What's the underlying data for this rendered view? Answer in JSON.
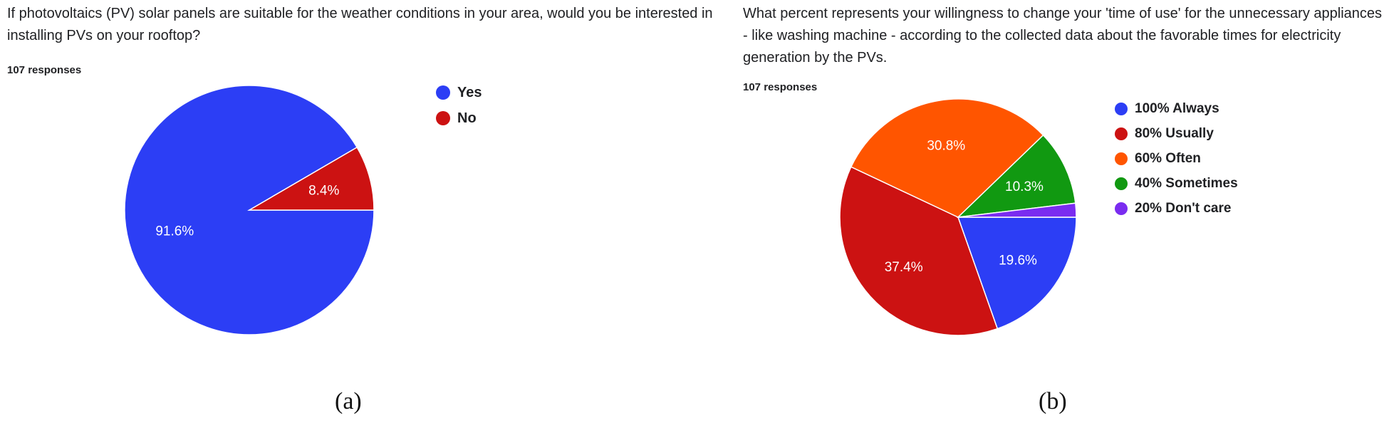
{
  "panels": [
    {
      "question": "If photovoltaics (PV) solar panels are suitable for the weather conditions in your area, would you be interested in installing PVs on your rooftop?",
      "responses": "107 responses",
      "caption": "(a)"
    },
    {
      "question": "What percent represents your willingness to change your 'time of use' for the unnecessary appliances - like washing machine - according to the collected data about the favorable times for electricity generation by the PVs.",
      "responses": "107 responses",
      "caption": "(b)"
    }
  ],
  "chart_data": [
    {
      "type": "pie",
      "title": "If photovoltaics (PV) solar panels are suitable for the weather conditions in your area, would you be interested in installing PVs on your rooftop?",
      "categories": [
        "Yes",
        "No"
      ],
      "values": [
        91.6,
        8.4
      ],
      "data_labels": [
        "91.6%",
        "8.4%"
      ],
      "colors": [
        "#2c3ef5",
        "#cc1212"
      ],
      "start_angle": "3 o'clock, clockwise",
      "legend_position": "right"
    },
    {
      "type": "pie",
      "title": "What percent represents your willingness to change your 'time of use' for the unnecessary appliances - like washing machine - according to the collected data about the favorable times for electricity generation by the PVs.",
      "categories": [
        "100% Always",
        "80% Usually",
        "60% Often",
        "40% Sometimes",
        "20% Don't care"
      ],
      "values": [
        19.6,
        37.4,
        30.8,
        10.3,
        1.9
      ],
      "data_labels": [
        "19.6%",
        "37.4%",
        "30.8%",
        "10.3%",
        ""
      ],
      "colors": [
        "#2c3ef5",
        "#cc1212",
        "#ff5500",
        "#119911",
        "#7a2cf0"
      ],
      "start_angle": "3 o'clock, clockwise",
      "legend_position": "right"
    }
  ]
}
